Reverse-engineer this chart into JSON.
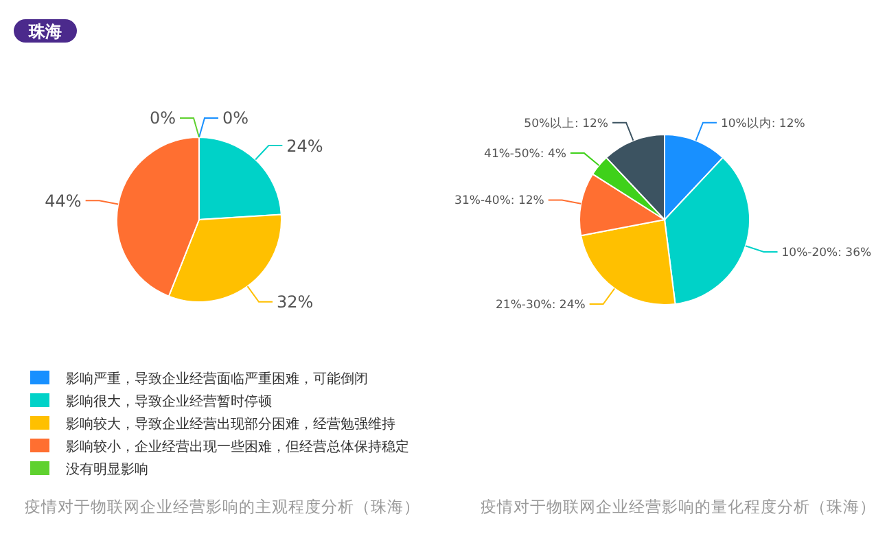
{
  "chart_data": [
    {
      "type": "pie",
      "title": "疫情对于物联网企业经营影响的主观程度分析（珠海）",
      "annotations": [
        "珠海"
      ],
      "legend": "bottom",
      "categories": [
        "影响严重，导致企业经营面临严重困难，可能倒闭",
        "影响很大，导致企业经营暂时停顿",
        "影响较大，导致企业经营出现部分困难，经营勉强维持",
        "影响较小，企业经营出现一些困难，但经营总体保持稳定",
        "没有明显影响"
      ],
      "values": [
        0,
        24,
        32,
        44,
        0
      ],
      "value_labels": [
        "0%",
        "24%",
        "32%",
        "44%",
        "0%"
      ],
      "colors": [
        "#1890ff",
        "#00d2c8",
        "#ffc000",
        "#ff6f31",
        "#5fd12f"
      ]
    },
    {
      "type": "pie",
      "title": "疫情对于物联网企业经营影响的量化程度分析（珠海）",
      "legend": false,
      "categories": [
        "10%以内",
        "10%-20%",
        "21%-30%",
        "31%-40%",
        "41%-50%",
        "50%以上"
      ],
      "values": [
        12,
        36,
        24,
        12,
        4,
        12
      ],
      "value_labels": [
        "12%",
        "36%",
        "24%",
        "12%",
        "4%",
        "12%"
      ],
      "colors": [
        "#1890ff",
        "#00d2c8",
        "#ffc000",
        "#ff6f31",
        "#3fd11a",
        "#3c5361"
      ]
    }
  ]
}
